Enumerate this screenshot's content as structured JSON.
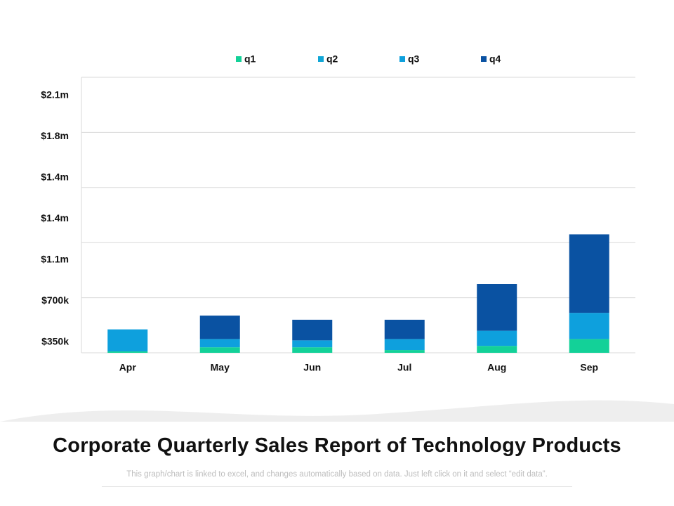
{
  "slide": {
    "title": "Corporate Quarterly Sales Report of Technology Products",
    "caption": "This graph/chart is linked to excel, and changes automatically based on data. Just left click on it and select “edit data”."
  },
  "colors": {
    "q1": "#13d198",
    "q2": "#10a6d6",
    "q3": "#0ea0dd",
    "q4": "#0a52a2",
    "grid": "#d9d9d9",
    "swoosh": "#eeeeee"
  },
  "chart_data": {
    "type": "bar",
    "stacked": true,
    "categories": [
      "Apr",
      "May",
      "Jun",
      "Jul",
      "Aug",
      "Sep"
    ],
    "series": [
      {
        "name": "q1",
        "values": [
          1,
          4,
          4,
          2,
          5,
          10
        ]
      },
      {
        "name": "q2",
        "values": [
          0,
          0,
          0,
          0,
          0,
          0
        ]
      },
      {
        "name": "q3",
        "values": [
          16,
          6,
          5,
          8,
          11,
          19
        ]
      },
      {
        "name": "q4",
        "values": [
          0,
          17,
          15,
          14,
          34,
          57
        ]
      }
    ],
    "y_tick_labels": [
      "$350k",
      "$700k",
      "$1.1m",
      "$1.4m",
      "$1.4m",
      "$1.8m",
      "$2.1m"
    ],
    "ylim": [
      0,
      200
    ],
    "legend_position": "top",
    "grid": true
  }
}
